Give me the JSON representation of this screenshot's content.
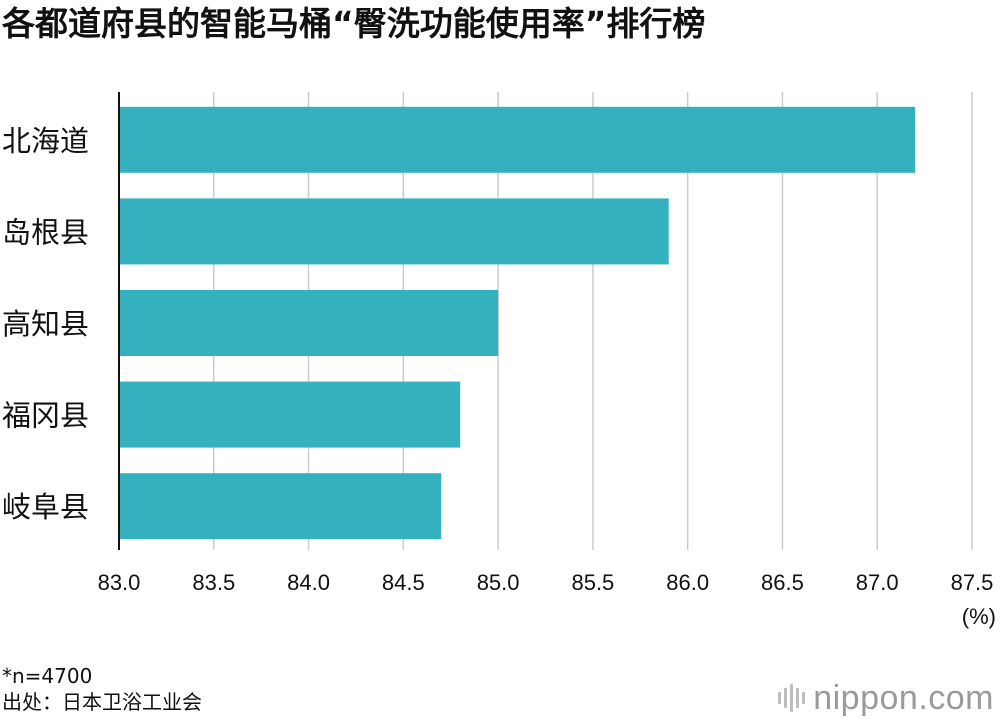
{
  "header": {
    "title": "各都道府县的智能马桶“臀洗功能使用率”排行榜"
  },
  "chart_data": {
    "type": "bar",
    "orientation": "horizontal",
    "title": "各都道府县的智能马桶“臀洗功能使用率”排行榜",
    "categories": [
      "北海道",
      "岛根县",
      "高知县",
      "福冈县",
      "岐阜县"
    ],
    "values": [
      87.2,
      85.9,
      85.0,
      84.8,
      84.7
    ],
    "xlim": [
      83.0,
      87.5
    ],
    "xticks": [
      "83.0",
      "83.5",
      "84.0",
      "84.5",
      "85.0",
      "85.5",
      "86.0",
      "86.5",
      "87.0",
      "87.5"
    ],
    "xlabel": "(%)",
    "ylabel": "",
    "grid": true,
    "bar_color": "#34b0bf",
    "grid_color": "#cccccc"
  },
  "footnotes": {
    "sample": "*n=4700",
    "source": "出处：日本卫浴工业会"
  },
  "logo": {
    "text": "nippon.com",
    "text_color": "#9a9a9a"
  }
}
